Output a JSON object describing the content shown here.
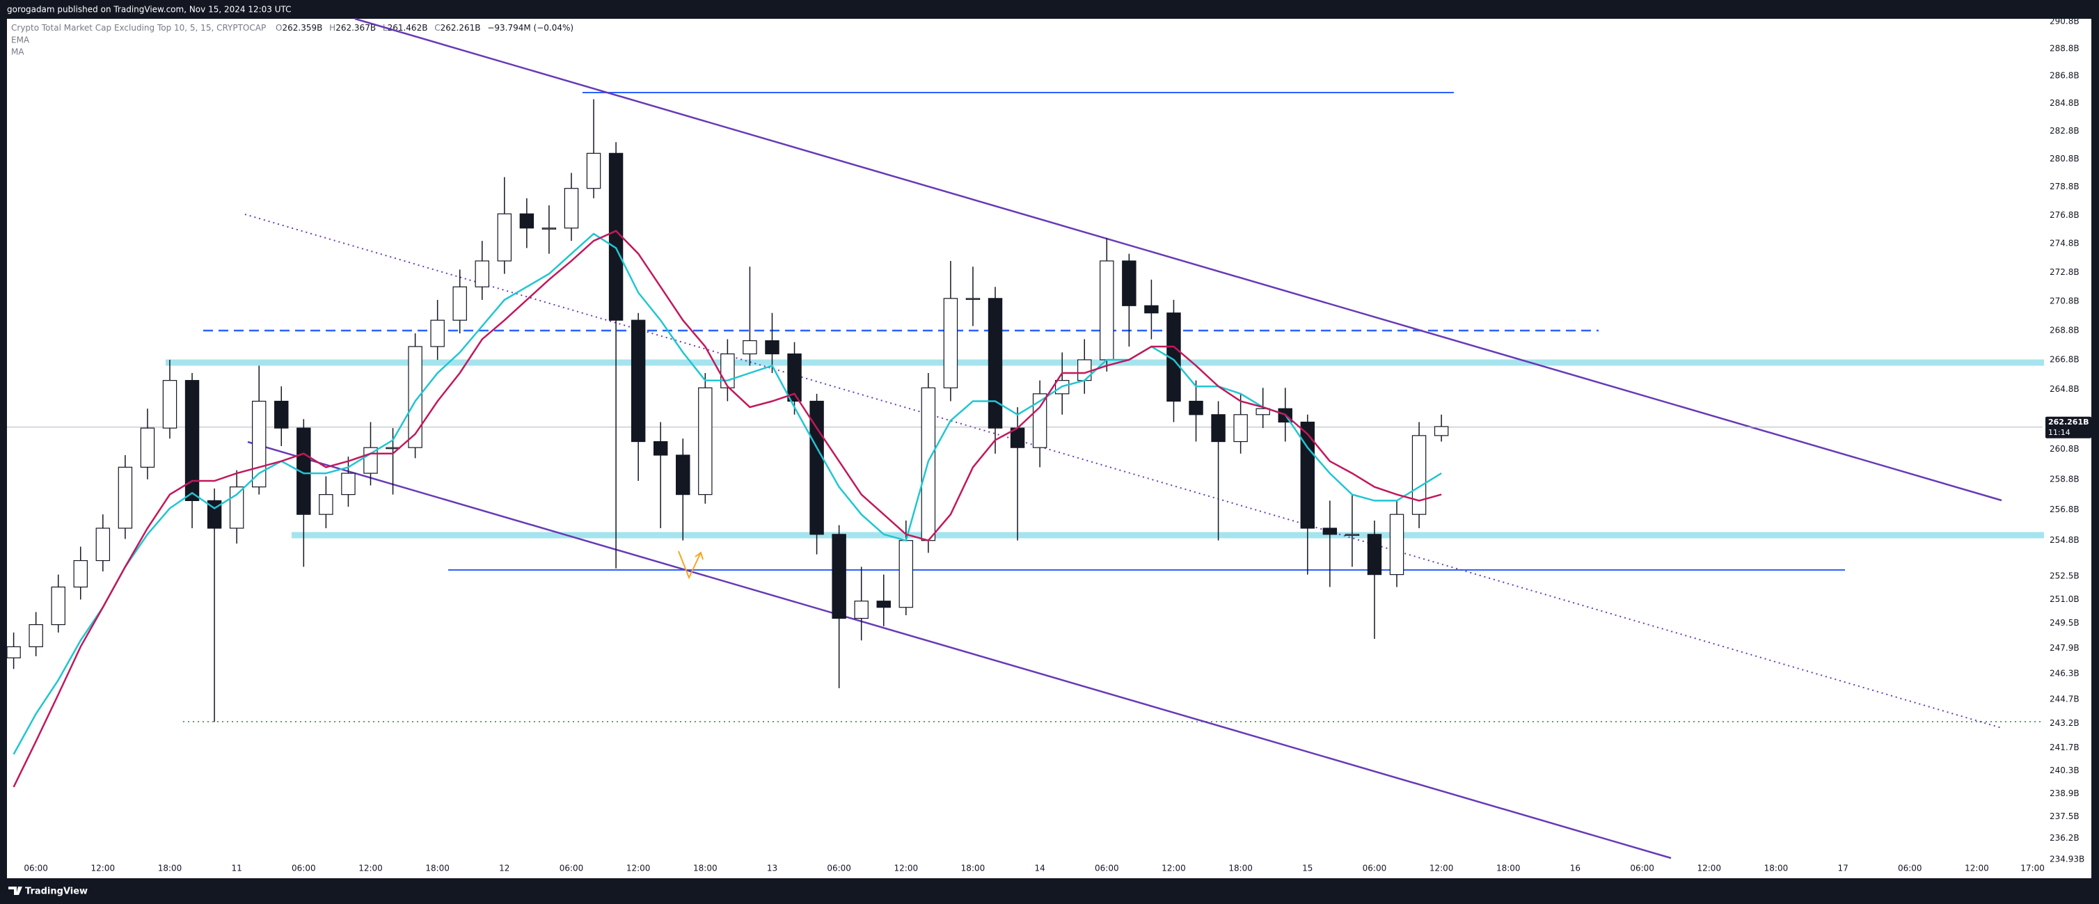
{
  "header": {
    "published": "gorogadam published on TradingView.com, Nov 15, 2024 12:03 UTC",
    "symbol": "Crypto Total Market Cap Excluding Top 10, 5, 15, CRYPTOCAP",
    "ohlc": [
      {
        "label": "O",
        "value": "262.359B"
      },
      {
        "label": "H",
        "value": "262.367B"
      },
      {
        "label": "L",
        "value": "261.462B"
      },
      {
        "label": "C",
        "value": "262.261B"
      }
    ],
    "change": "−93.794M (−0.04%)"
  },
  "chart_data": {
    "type": "candlestick",
    "x": [
      4,
      6,
      8,
      10,
      12,
      14,
      16,
      18,
      20,
      22,
      24,
      26,
      28,
      30,
      32,
      34,
      36,
      38,
      40,
      42,
      44,
      46,
      48,
      50,
      52,
      54,
      56,
      58,
      60,
      62,
      64,
      66,
      68,
      70,
      72,
      74,
      76,
      78,
      80,
      82,
      84,
      86,
      88,
      90,
      92,
      94,
      96,
      98,
      100,
      102,
      104,
      106,
      108,
      110,
      112,
      114,
      116,
      118,
      120,
      122,
      124,
      126,
      128,
      130,
      132
    ],
    "open": [
      247.3,
      248.0,
      249.4,
      251.8,
      253.5,
      255.6,
      259.6,
      262.2,
      265.4,
      257.4,
      255.6,
      258.3,
      264.0,
      262.2,
      256.5,
      257.8,
      259.2,
      260.9,
      260.9,
      267.7,
      269.5,
      271.8,
      273.6,
      276.9,
      275.9,
      275.9,
      278.7,
      281.2,
      269.5,
      261.3,
      260.4,
      257.8,
      264.9,
      267.2,
      268.1,
      267.2,
      264.0,
      255.2,
      249.8,
      250.9,
      250.5,
      254.8,
      264.9,
      271.0,
      271.0,
      262.2,
      260.9,
      264.5,
      265.4,
      266.8,
      273.6,
      270.5,
      270.0,
      264.0,
      263.1,
      261.3,
      263.1,
      263.5,
      262.6,
      255.6,
      255.2,
      255.2,
      252.6,
      256.5,
      261.7
    ],
    "high": [
      248.9,
      250.2,
      252.6,
      254.4,
      256.5,
      260.4,
      263.5,
      266.8,
      265.9,
      258.2,
      259.4,
      266.4,
      265.0,
      262.8,
      259.0,
      260.3,
      262.6,
      262.2,
      268.6,
      270.9,
      273.0,
      275.0,
      279.5,
      278.0,
      277.5,
      279.8,
      285.1,
      282.0,
      270.0,
      262.6,
      261.5,
      265.9,
      268.2,
      273.2,
      270.0,
      268.0,
      264.5,
      255.8,
      253.1,
      252.6,
      256.1,
      265.9,
      273.6,
      273.2,
      271.8,
      263.6,
      265.4,
      267.3,
      268.2,
      275.2,
      274.1,
      272.3,
      270.9,
      265.4,
      264.0,
      264.5,
      264.9,
      264.9,
      263.1,
      257.4,
      257.8,
      256.1,
      257.4,
      262.6,
      263.1
    ],
    "low": [
      246.6,
      247.4,
      248.9,
      251.0,
      252.8,
      254.9,
      258.8,
      261.5,
      255.6,
      243.3,
      254.6,
      257.8,
      261.0,
      253.1,
      255.6,
      257.0,
      258.4,
      257.8,
      260.2,
      266.8,
      268.6,
      270.9,
      272.7,
      274.5,
      274.1,
      275.0,
      278.0,
      253.0,
      258.7,
      255.6,
      254.8,
      257.2,
      264.0,
      266.4,
      265.9,
      263.1,
      253.9,
      245.4,
      248.4,
      249.3,
      250.0,
      254.0,
      264.0,
      269.1,
      260.5,
      254.8,
      259.6,
      263.1,
      264.5,
      266.0,
      267.7,
      268.2,
      262.6,
      261.3,
      254.8,
      260.5,
      262.2,
      261.3,
      252.6,
      251.8,
      253.1,
      248.5,
      251.8,
      255.6,
      261.3
    ],
    "close": [
      248.0,
      249.4,
      251.8,
      253.5,
      255.6,
      259.6,
      262.2,
      265.4,
      257.4,
      255.6,
      258.3,
      264.0,
      262.2,
      256.5,
      257.8,
      259.2,
      260.9,
      260.9,
      267.7,
      269.5,
      271.8,
      273.6,
      276.9,
      275.9,
      275.9,
      278.7,
      281.2,
      269.5,
      261.3,
      260.4,
      257.8,
      264.9,
      267.2,
      268.1,
      267.2,
      264.0,
      255.2,
      249.8,
      250.9,
      250.5,
      254.8,
      264.9,
      271.0,
      271.0,
      262.2,
      260.9,
      264.5,
      265.4,
      266.8,
      273.6,
      270.5,
      270.0,
      264.0,
      263.1,
      261.3,
      263.1,
      263.5,
      262.6,
      255.6,
      255.2,
      255.2,
      252.6,
      256.5,
      261.7,
      262.3
    ],
    "up_color": "#ffffff",
    "down_color": "#131722",
    "wick_color": "#131722",
    "series": [
      {
        "name": "EMA",
        "color": "#1fc6d2",
        "values": [
          241.3,
          243.8,
          245.9,
          248.4,
          250.5,
          253.1,
          255.2,
          256.9,
          257.9,
          256.9,
          257.8,
          259.2,
          260.0,
          259.2,
          259.2,
          259.6,
          260.5,
          261.4,
          264.0,
          265.9,
          267.3,
          269.1,
          270.9,
          271.8,
          272.7,
          274.1,
          275.5,
          274.5,
          271.4,
          269.5,
          267.3,
          265.4,
          265.4,
          265.9,
          266.4,
          263.6,
          260.9,
          258.3,
          256.5,
          255.2,
          254.8,
          260.0,
          262.7,
          264.0,
          264.0,
          263.1,
          264.0,
          265.0,
          265.4,
          266.8,
          266.8,
          267.7,
          266.8,
          265.0,
          265.0,
          264.5,
          263.6,
          263.1,
          260.9,
          259.2,
          257.8,
          257.4,
          257.4,
          258.3,
          259.2
        ]
      },
      {
        "name": "MA",
        "color": "#c2185b",
        "values": [
          239.3,
          242.1,
          245.0,
          248.0,
          250.5,
          253.1,
          255.6,
          257.8,
          258.7,
          258.7,
          259.2,
          259.6,
          260.0,
          260.5,
          259.6,
          260.0,
          260.5,
          260.5,
          261.8,
          264.0,
          265.9,
          268.2,
          269.5,
          270.9,
          272.3,
          273.6,
          275.0,
          275.7,
          274.1,
          271.8,
          269.5,
          267.7,
          265.0,
          263.6,
          264.0,
          264.5,
          262.2,
          260.0,
          257.8,
          256.5,
          255.2,
          254.8,
          256.5,
          259.6,
          261.4,
          262.2,
          263.6,
          265.9,
          265.9,
          266.4,
          266.8,
          267.7,
          267.7,
          266.4,
          265.0,
          264.0,
          263.6,
          263.1,
          261.8,
          260.0,
          259.2,
          258.3,
          257.8,
          257.4,
          257.8
        ]
      }
    ],
    "xlim": [
      3.4,
      185.9
    ],
    "xticks": [
      {
        "value": 6,
        "label": "06:00"
      },
      {
        "value": 12,
        "label": "12:00"
      },
      {
        "value": 18,
        "label": "18:00"
      },
      {
        "value": 24,
        "label": "11"
      },
      {
        "value": 30,
        "label": "06:00"
      },
      {
        "value": 36,
        "label": "12:00"
      },
      {
        "value": 42,
        "label": "18:00"
      },
      {
        "value": 48,
        "label": "12"
      },
      {
        "value": 54,
        "label": "06:00"
      },
      {
        "value": 60,
        "label": "12:00"
      },
      {
        "value": 66,
        "label": "18:00"
      },
      {
        "value": 72,
        "label": "13"
      },
      {
        "value": 78,
        "label": "06:00"
      },
      {
        "value": 84,
        "label": "12:00"
      },
      {
        "value": 90,
        "label": "18:00"
      },
      {
        "value": 96,
        "label": "14"
      },
      {
        "value": 102,
        "label": "06:00"
      },
      {
        "value": 108,
        "label": "12:00"
      },
      {
        "value": 114,
        "label": "18:00"
      },
      {
        "value": 120,
        "label": "15"
      },
      {
        "value": 126,
        "label": "06:00"
      },
      {
        "value": 132,
        "label": "12:00"
      },
      {
        "value": 138,
        "label": "18:00"
      },
      {
        "value": 144,
        "label": "16"
      },
      {
        "value": 150,
        "label": "06:00"
      },
      {
        "value": 156,
        "label": "12:00"
      },
      {
        "value": 162,
        "label": "18:00"
      },
      {
        "value": 168,
        "label": "17"
      },
      {
        "value": 174,
        "label": "06:00"
      },
      {
        "value": 180,
        "label": "12:00"
      },
      {
        "value": 185,
        "label": "17:00"
      }
    ],
    "ylim": [
      234.8,
      291.0
    ],
    "yticks": [
      {
        "value": 290.8,
        "label": "290.8B"
      },
      {
        "value": 288.8,
        "label": "288.8B"
      },
      {
        "value": 286.8,
        "label": "286.8B"
      },
      {
        "value": 284.8,
        "label": "284.8B"
      },
      {
        "value": 282.8,
        "label": "282.8B"
      },
      {
        "value": 280.8,
        "label": "280.8B"
      },
      {
        "value": 278.8,
        "label": "278.8B"
      },
      {
        "value": 276.8,
        "label": "276.8B"
      },
      {
        "value": 274.8,
        "label": "274.8B"
      },
      {
        "value": 272.8,
        "label": "272.8B"
      },
      {
        "value": 270.8,
        "label": "270.8B"
      },
      {
        "value": 268.8,
        "label": "268.8B"
      },
      {
        "value": 266.8,
        "label": "266.8B"
      },
      {
        "value": 264.8,
        "label": "264.8B"
      },
      {
        "value": 260.8,
        "label": "260.8B"
      },
      {
        "value": 258.8,
        "label": "258.8B"
      },
      {
        "value": 256.8,
        "label": "256.8B"
      },
      {
        "value": 254.8,
        "label": "254.8B"
      },
      {
        "value": 252.5,
        "label": "252.5B"
      },
      {
        "value": 251.0,
        "label": "251.0B"
      },
      {
        "value": 249.5,
        "label": "249.5B"
      },
      {
        "value": 247.9,
        "label": "247.9B"
      },
      {
        "value": 246.3,
        "label": "246.3B"
      },
      {
        "value": 244.7,
        "label": "244.7B"
      },
      {
        "value": 243.2,
        "label": "243.2B"
      },
      {
        "value": 241.7,
        "label": "241.7B"
      },
      {
        "value": 240.3,
        "label": "240.3B"
      },
      {
        "value": 238.9,
        "label": "238.9B"
      },
      {
        "value": 237.5,
        "label": "237.5B"
      },
      {
        "value": 236.2,
        "label": "236.2B"
      },
      {
        "value": 234.93,
        "label": "234.93B"
      }
    ],
    "log_scale": true,
    "grid": false,
    "last_price": {
      "value": 262.261,
      "label": "262.261B"
    },
    "countdown": "11:14"
  },
  "footer": {
    "brand": "TradingView"
  }
}
